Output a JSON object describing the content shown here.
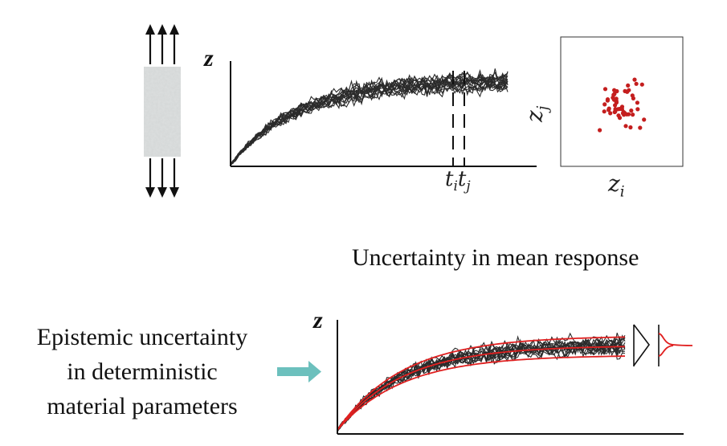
{
  "colors": {
    "ink": "#111111",
    "curves": "#2b2b2b",
    "mean_curves": "#e02020",
    "scatter_points": "#c41e1e",
    "arrow_teal": "#6cc0bd",
    "specimen_gray": "#d3d6d6"
  },
  "top_plot": {
    "y_axis_label": "z",
    "marker_i": "t",
    "marker_i_sub": "i",
    "marker_j": "t",
    "marker_j_sub": "j"
  },
  "scatter_plot": {
    "x_axis_label": "z",
    "x_axis_sub": "i",
    "y_axis_label": "z",
    "y_axis_sub": "j"
  },
  "mean_response": {
    "heading": "Uncertainty in mean response",
    "y_axis_label": "z"
  },
  "epistemic": {
    "line1": "Epistemic uncertainty",
    "line2": "in deterministic",
    "line3": "material parameters"
  },
  "icons": {
    "specimen": "tensile-specimen-icon",
    "arrow": "right-arrow-icon"
  }
}
